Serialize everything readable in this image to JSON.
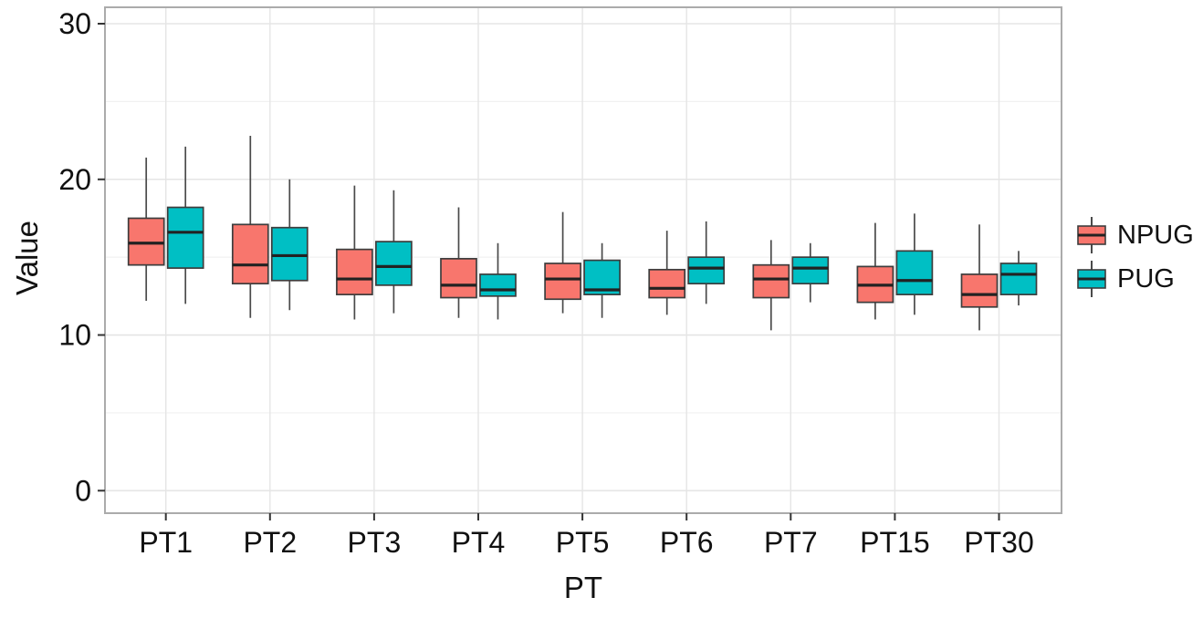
{
  "chart_data": {
    "type": "boxplot",
    "title": "",
    "xlabel": "PT",
    "ylabel": "Value",
    "ylim": [
      -1.5,
      31
    ],
    "y_major_ticks": [
      0,
      10,
      20,
      30
    ],
    "y_minor_ticks": [
      5,
      15,
      25
    ],
    "y_tick_labels": [
      "0",
      "10",
      "20",
      "30"
    ],
    "grid": "on",
    "legend_position": "right",
    "categories": [
      "PT1",
      "PT2",
      "PT3",
      "PT4",
      "PT5",
      "PT6",
      "PT7",
      "PT15",
      "PT30"
    ],
    "series": [
      {
        "name": "NPUG",
        "color": "#F8766D",
        "stats": [
          {
            "lo": 12.2,
            "q1": 14.5,
            "med": 15.9,
            "q3": 17.5,
            "hi": 21.4
          },
          {
            "lo": 11.1,
            "q1": 13.3,
            "med": 14.5,
            "q3": 17.1,
            "hi": 22.8
          },
          {
            "lo": 11.0,
            "q1": 12.6,
            "med": 13.6,
            "q3": 15.5,
            "hi": 19.6
          },
          {
            "lo": 11.1,
            "q1": 12.4,
            "med": 13.2,
            "q3": 14.9,
            "hi": 18.2
          },
          {
            "lo": 11.4,
            "q1": 12.3,
            "med": 13.6,
            "q3": 14.6,
            "hi": 17.9
          },
          {
            "lo": 11.3,
            "q1": 12.4,
            "med": 13.0,
            "q3": 14.2,
            "hi": 16.7
          },
          {
            "lo": 10.3,
            "q1": 12.4,
            "med": 13.6,
            "q3": 14.5,
            "hi": 16.1
          },
          {
            "lo": 11.0,
            "q1": 12.1,
            "med": 13.2,
            "q3": 14.4,
            "hi": 17.2
          },
          {
            "lo": 10.3,
            "q1": 11.8,
            "med": 12.6,
            "q3": 13.9,
            "hi": 17.1
          }
        ]
      },
      {
        "name": "PUG",
        "color": "#00BFC4",
        "stats": [
          {
            "lo": 12.0,
            "q1": 14.3,
            "med": 16.6,
            "q3": 18.2,
            "hi": 22.1
          },
          {
            "lo": 11.6,
            "q1": 13.5,
            "med": 15.1,
            "q3": 16.9,
            "hi": 20.0
          },
          {
            "lo": 11.4,
            "q1": 13.2,
            "med": 14.4,
            "q3": 16.0,
            "hi": 19.3
          },
          {
            "lo": 11.0,
            "q1": 12.5,
            "med": 12.9,
            "q3": 13.9,
            "hi": 15.9
          },
          {
            "lo": 11.1,
            "q1": 12.6,
            "med": 12.9,
            "q3": 14.8,
            "hi": 15.9
          },
          {
            "lo": 12.0,
            "q1": 13.3,
            "med": 14.3,
            "q3": 15.0,
            "hi": 17.3
          },
          {
            "lo": 12.1,
            "q1": 13.3,
            "med": 14.3,
            "q3": 15.0,
            "hi": 15.9
          },
          {
            "lo": 11.3,
            "q1": 12.6,
            "med": 13.5,
            "q3": 15.4,
            "hi": 17.8
          },
          {
            "lo": 11.9,
            "q1": 12.6,
            "med": 13.9,
            "q3": 14.6,
            "hi": 15.4
          }
        ]
      }
    ],
    "colors": {
      "npug_fill": "#F8766D",
      "pug_fill": "#00BFC4",
      "box_stroke": "#3d3d3d",
      "median": "#222222",
      "whisker": "#4a4a4a",
      "grid_major": "#e5e5e5",
      "grid_minor": "#f1f1f1",
      "panel_border": "#ababab",
      "tick": "#333333",
      "text": "#111111"
    }
  }
}
